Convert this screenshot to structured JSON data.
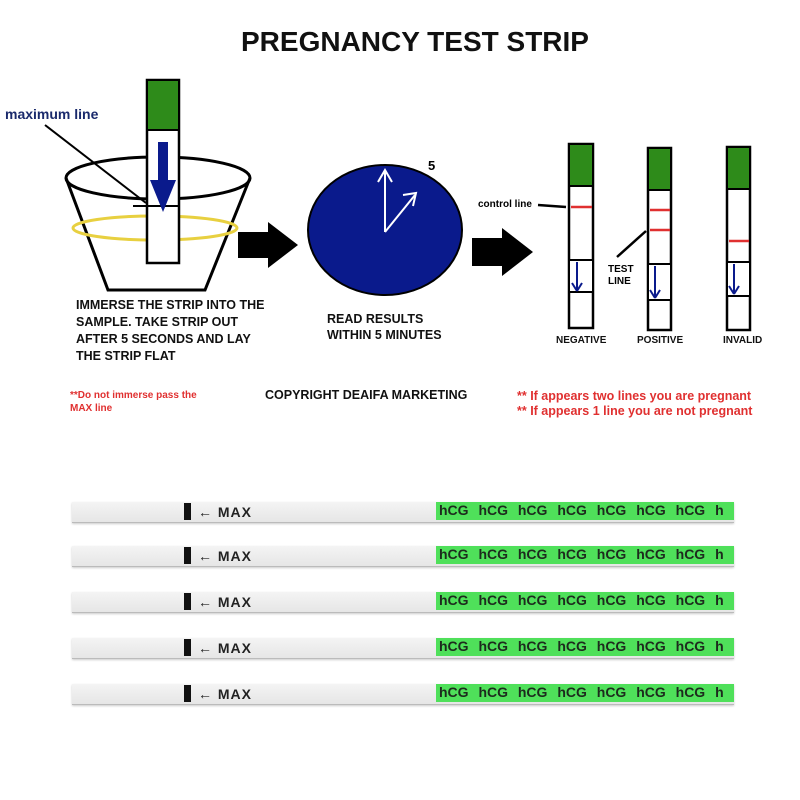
{
  "title": "PREGNANCY TEST STRIP",
  "step1": {
    "label_max_line": "maximum line",
    "instruction": "IMMERSE THE STRIP INTO THE SAMPLE. TAKE STRIP OUT AFTER 5 SECONDS AND LAY THE STRIP FLAT",
    "warning": "**Do not immerse pass the MAX line"
  },
  "step2": {
    "clock_label": "5",
    "instruction": "READ RESULTS WITHIN 5 MINUTES"
  },
  "step3": {
    "control_line_label": "control line",
    "test_line_label": "TEST LINE",
    "results": [
      "NEGATIVE",
      "POSITIVE",
      "INVALID"
    ],
    "max_text": "MAX"
  },
  "copyright": "COPYRIGHT DEAIFA MARKETING",
  "notes": [
    "** If appears two lines you are pregnant",
    "** If appears 1 line you are not pregnant"
  ],
  "strips": {
    "count": 5,
    "max_label": "← MAX",
    "band_text": "hCG hCG hCG hCG hCG hCG hCG h"
  },
  "colors": {
    "green": "#2e8b1a",
    "blue": "#0a1a8c",
    "red_line": "#e03030",
    "urine": "#e8d040",
    "strip_green": "#4fe05a"
  }
}
